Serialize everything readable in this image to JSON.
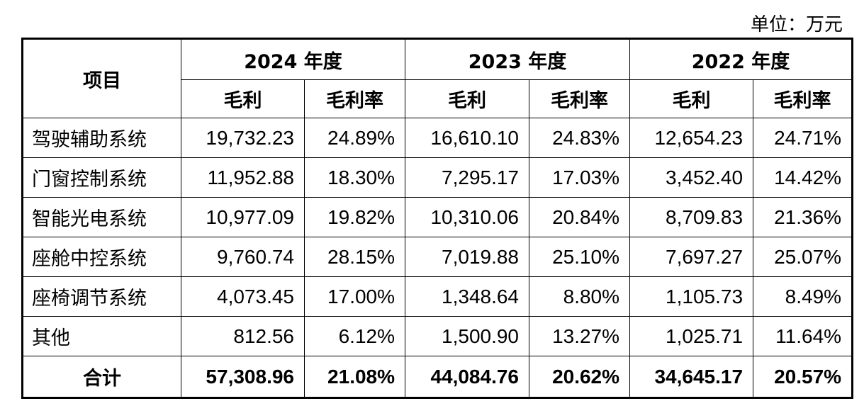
{
  "unit_label": "单位：万元",
  "header": {
    "item": "项目",
    "years": [
      "2024 年度",
      "2023 年度",
      "2022 年度"
    ],
    "gross_profit": "毛利",
    "gross_margin": "毛利率"
  },
  "rows": [
    {
      "label": "驾驶辅助系统",
      "values": [
        "19,732.23",
        "24.89%",
        "16,610.10",
        "24.83%",
        "12,654.23",
        "24.71%"
      ]
    },
    {
      "label": "门窗控制系统",
      "values": [
        "11,952.88",
        "18.30%",
        "7,295.17",
        "17.03%",
        "3,452.40",
        "14.42%"
      ]
    },
    {
      "label": "智能光电系统",
      "values": [
        "10,977.09",
        "19.82%",
        "10,310.06",
        "20.84%",
        "8,709.83",
        "21.36%"
      ]
    },
    {
      "label": "座舱中控系统",
      "values": [
        "9,760.74",
        "28.15%",
        "7,019.88",
        "25.10%",
        "7,697.27",
        "25.07%"
      ]
    },
    {
      "label": "座椅调节系统",
      "values": [
        "4,073.45",
        "17.00%",
        "1,348.64",
        "8.80%",
        "1,105.73",
        "8.49%"
      ]
    },
    {
      "label": "其他",
      "values": [
        "812.56",
        "6.12%",
        "1,500.90",
        "13.27%",
        "1,025.71",
        "11.64%"
      ]
    }
  ],
  "total": {
    "label": "合计",
    "values": [
      "57,308.96",
      "21.08%",
      "44,084.76",
      "20.62%",
      "34,645.17",
      "20.57%"
    ]
  }
}
